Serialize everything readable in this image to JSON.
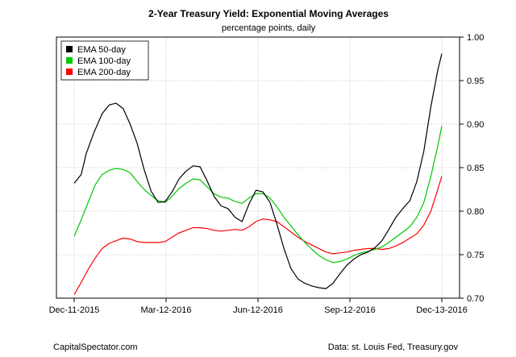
{
  "chart_data": {
    "type": "line",
    "title": "2-Year Treasury Yield: Exponential Moving Averages",
    "subtitle": "percentage points, daily",
    "x_ticks": [
      "Dec-11-2015",
      "Mar-12-2016",
      "Jun-12-2016",
      "Sep-12-2016",
      "Dec-13-2016"
    ],
    "y_ticks": [
      "0.70",
      "0.75",
      "0.80",
      "0.85",
      "0.90",
      "0.95",
      "1.00"
    ],
    "ylim": [
      0.7,
      1.0
    ],
    "xlim": [
      "2015-12-11",
      "2016-12-13"
    ],
    "grid": true,
    "legend_position": "top-left",
    "series": [
      {
        "name": "EMA 50-day",
        "color": "#000000",
        "points": [
          [
            "2015-12-11",
            0.832
          ],
          [
            "2015-12-18",
            0.842
          ],
          [
            "2015-12-23",
            0.866
          ],
          [
            "2015-12-31",
            0.891
          ],
          [
            "2016-01-08",
            0.912
          ],
          [
            "2016-01-15",
            0.922
          ],
          [
            "2016-01-22",
            0.924
          ],
          [
            "2016-01-29",
            0.918
          ],
          [
            "2016-02-05",
            0.9
          ],
          [
            "2016-02-12",
            0.878
          ],
          [
            "2016-02-19",
            0.848
          ],
          [
            "2016-02-26",
            0.823
          ],
          [
            "2016-03-04",
            0.81
          ],
          [
            "2016-03-11",
            0.811
          ],
          [
            "2016-03-18",
            0.822
          ],
          [
            "2016-03-25",
            0.837
          ],
          [
            "2016-04-01",
            0.846
          ],
          [
            "2016-04-08",
            0.852
          ],
          [
            "2016-04-15",
            0.851
          ],
          [
            "2016-04-22",
            0.835
          ],
          [
            "2016-04-29",
            0.817
          ],
          [
            "2016-05-06",
            0.806
          ],
          [
            "2016-05-13",
            0.803
          ],
          [
            "2016-05-20",
            0.793
          ],
          [
            "2016-05-27",
            0.788
          ],
          [
            "2016-06-03",
            0.808
          ],
          [
            "2016-06-10",
            0.824
          ],
          [
            "2016-06-17",
            0.822
          ],
          [
            "2016-06-24",
            0.81
          ],
          [
            "2016-07-01",
            0.785
          ],
          [
            "2016-07-08",
            0.757
          ],
          [
            "2016-07-15",
            0.734
          ],
          [
            "2016-07-22",
            0.722
          ],
          [
            "2016-07-29",
            0.717
          ],
          [
            "2016-08-05",
            0.714
          ],
          [
            "2016-08-12",
            0.712
          ],
          [
            "2016-08-19",
            0.711
          ],
          [
            "2016-08-26",
            0.717
          ],
          [
            "2016-09-02",
            0.728
          ],
          [
            "2016-09-09",
            0.738
          ],
          [
            "2016-09-16",
            0.745
          ],
          [
            "2016-09-23",
            0.75
          ],
          [
            "2016-09-30",
            0.753
          ],
          [
            "2016-10-07",
            0.758
          ],
          [
            "2016-10-14",
            0.766
          ],
          [
            "2016-10-21",
            0.779
          ],
          [
            "2016-10-28",
            0.793
          ],
          [
            "2016-11-04",
            0.803
          ],
          [
            "2016-11-11",
            0.812
          ],
          [
            "2016-11-18",
            0.834
          ],
          [
            "2016-11-25",
            0.869
          ],
          [
            "2016-12-02",
            0.92
          ],
          [
            "2016-12-09",
            0.962
          ],
          [
            "2016-12-13",
            0.981
          ]
        ]
      },
      {
        "name": "EMA 100-day",
        "color": "#00c800",
        "points": [
          [
            "2015-12-11",
            0.771
          ],
          [
            "2015-12-18",
            0.79
          ],
          [
            "2015-12-25",
            0.81
          ],
          [
            "2016-01-01",
            0.83
          ],
          [
            "2016-01-08",
            0.842
          ],
          [
            "2016-01-15",
            0.847
          ],
          [
            "2016-01-22",
            0.849
          ],
          [
            "2016-01-29",
            0.848
          ],
          [
            "2016-02-05",
            0.844
          ],
          [
            "2016-02-12",
            0.834
          ],
          [
            "2016-02-19",
            0.825
          ],
          [
            "2016-02-26",
            0.818
          ],
          [
            "2016-03-04",
            0.812
          ],
          [
            "2016-03-11",
            0.81
          ],
          [
            "2016-03-18",
            0.817
          ],
          [
            "2016-03-25",
            0.826
          ],
          [
            "2016-04-01",
            0.832
          ],
          [
            "2016-04-08",
            0.837
          ],
          [
            "2016-04-15",
            0.836
          ],
          [
            "2016-04-22",
            0.828
          ],
          [
            "2016-04-29",
            0.82
          ],
          [
            "2016-05-06",
            0.816
          ],
          [
            "2016-05-13",
            0.815
          ],
          [
            "2016-05-20",
            0.811
          ],
          [
            "2016-05-27",
            0.809
          ],
          [
            "2016-06-03",
            0.815
          ],
          [
            "2016-06-10",
            0.82
          ],
          [
            "2016-06-17",
            0.82
          ],
          [
            "2016-06-24",
            0.815
          ],
          [
            "2016-07-01",
            0.805
          ],
          [
            "2016-07-08",
            0.793
          ],
          [
            "2016-07-15",
            0.783
          ],
          [
            "2016-07-22",
            0.773
          ],
          [
            "2016-07-29",
            0.764
          ],
          [
            "2016-08-05",
            0.756
          ],
          [
            "2016-08-12",
            0.749
          ],
          [
            "2016-08-19",
            0.744
          ],
          [
            "2016-08-26",
            0.741
          ],
          [
            "2016-09-02",
            0.742
          ],
          [
            "2016-09-09",
            0.745
          ],
          [
            "2016-09-16",
            0.749
          ],
          [
            "2016-09-23",
            0.752
          ],
          [
            "2016-09-30",
            0.754
          ],
          [
            "2016-10-07",
            0.756
          ],
          [
            "2016-10-14",
            0.759
          ],
          [
            "2016-10-21",
            0.764
          ],
          [
            "2016-10-28",
            0.77
          ],
          [
            "2016-11-04",
            0.776
          ],
          [
            "2016-11-11",
            0.782
          ],
          [
            "2016-11-18",
            0.793
          ],
          [
            "2016-11-25",
            0.81
          ],
          [
            "2016-12-02",
            0.84
          ],
          [
            "2016-12-09",
            0.875
          ],
          [
            "2016-12-13",
            0.898
          ]
        ]
      },
      {
        "name": "EMA 200-day",
        "color": "#ff0000",
        "points": [
          [
            "2015-12-11",
            0.704
          ],
          [
            "2015-12-18",
            0.718
          ],
          [
            "2015-12-25",
            0.733
          ],
          [
            "2016-01-01",
            0.746
          ],
          [
            "2016-01-08",
            0.757
          ],
          [
            "2016-01-15",
            0.763
          ],
          [
            "2016-01-22",
            0.766
          ],
          [
            "2016-01-29",
            0.769
          ],
          [
            "2016-02-05",
            0.768
          ],
          [
            "2016-02-12",
            0.765
          ],
          [
            "2016-02-19",
            0.764
          ],
          [
            "2016-02-26",
            0.764
          ],
          [
            "2016-03-04",
            0.764
          ],
          [
            "2016-03-11",
            0.765
          ],
          [
            "2016-03-18",
            0.77
          ],
          [
            "2016-03-25",
            0.775
          ],
          [
            "2016-04-01",
            0.778
          ],
          [
            "2016-04-08",
            0.781
          ],
          [
            "2016-04-15",
            0.781
          ],
          [
            "2016-04-22",
            0.78
          ],
          [
            "2016-04-29",
            0.778
          ],
          [
            "2016-05-06",
            0.777
          ],
          [
            "2016-05-13",
            0.778
          ],
          [
            "2016-05-20",
            0.779
          ],
          [
            "2016-05-27",
            0.778
          ],
          [
            "2016-06-03",
            0.782
          ],
          [
            "2016-06-10",
            0.788
          ],
          [
            "2016-06-17",
            0.791
          ],
          [
            "2016-06-24",
            0.79
          ],
          [
            "2016-07-01",
            0.788
          ],
          [
            "2016-07-08",
            0.782
          ],
          [
            "2016-07-15",
            0.776
          ],
          [
            "2016-07-22",
            0.77
          ],
          [
            "2016-07-29",
            0.765
          ],
          [
            "2016-08-05",
            0.761
          ],
          [
            "2016-08-12",
            0.757
          ],
          [
            "2016-08-19",
            0.753
          ],
          [
            "2016-08-26",
            0.751
          ],
          [
            "2016-09-02",
            0.752
          ],
          [
            "2016-09-09",
            0.753
          ],
          [
            "2016-09-16",
            0.755
          ],
          [
            "2016-09-23",
            0.756
          ],
          [
            "2016-09-30",
            0.757
          ],
          [
            "2016-10-07",
            0.757
          ],
          [
            "2016-10-14",
            0.756
          ],
          [
            "2016-10-21",
            0.757
          ],
          [
            "2016-10-28",
            0.76
          ],
          [
            "2016-11-04",
            0.764
          ],
          [
            "2016-11-11",
            0.769
          ],
          [
            "2016-11-18",
            0.774
          ],
          [
            "2016-11-25",
            0.784
          ],
          [
            "2016-12-02",
            0.8
          ],
          [
            "2016-12-09",
            0.825
          ],
          [
            "2016-12-13",
            0.84
          ]
        ]
      }
    ]
  },
  "footer": {
    "left": "CapitalSpectator.com",
    "right": "Data: st. Louis Fed, Treasury.gov"
  }
}
